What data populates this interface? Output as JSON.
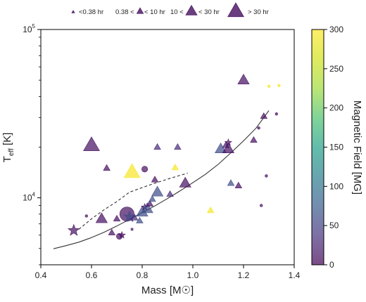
{
  "chart_data": {
    "type": "scatter",
    "title": "",
    "xlabel": "Mass [M☉]",
    "ylabel_main": "T",
    "ylabel_sub": "eff",
    "ylabel_unit": " [K]",
    "xlim": [
      0.4,
      1.4
    ],
    "ylim": [
      4000,
      100000
    ],
    "y_scale": "log",
    "grid": false,
    "x_ticks": [
      {
        "value": 0.4,
        "label": "0.4"
      },
      {
        "value": 0.6,
        "label": "0.6"
      },
      {
        "value": 0.8,
        "label": "0.8"
      },
      {
        "value": 1.0,
        "label": "1.0"
      },
      {
        "value": 1.2,
        "label": "1.2"
      },
      {
        "value": 1.4,
        "label": "1.4"
      }
    ],
    "y_major_ticks": [
      {
        "value": 10000,
        "base": "10",
        "exp": "4"
      },
      {
        "value": 100000,
        "base": "10",
        "exp": "5"
      }
    ],
    "y_minor_ticks": [
      4000,
      5000,
      6000,
      7000,
      8000,
      9000,
      20000,
      30000,
      40000,
      50000,
      60000,
      70000,
      80000,
      90000
    ],
    "colorbar": {
      "label": "Magnetic Field [MG]",
      "range": [
        0,
        300
      ],
      "colormap": "viridis",
      "alpha": 0.7,
      "ticks": [
        {
          "value": 0,
          "label": "0"
        },
        {
          "value": 50,
          "label": "50"
        },
        {
          "value": 100,
          "label": "100"
        },
        {
          "value": 150,
          "label": "150"
        },
        {
          "value": 200,
          "label": "200"
        },
        {
          "value": 250,
          "label": "250"
        },
        {
          "value": 300,
          "label": "300"
        }
      ]
    },
    "legend": {
      "placement": "top",
      "entries": [
        {
          "label": "<0.38 hr",
          "size_class": "tiny"
        },
        {
          "label": "0.38 < ",
          "label_after": "< 10 hr",
          "size_class": "small"
        },
        {
          "label": "10 < ",
          "label_after": "< 30 hr",
          "size_class": "medium"
        },
        {
          "label": "> 30 hr",
          "size_class": "large"
        }
      ]
    },
    "lines": [
      {
        "style": "solid",
        "color": "#333333",
        "points": [
          [
            0.45,
            4980
          ],
          [
            0.5,
            5200
          ],
          [
            0.55,
            5450
          ],
          [
            0.6,
            5800
          ],
          [
            0.65,
            6250
          ],
          [
            0.7,
            6800
          ],
          [
            0.75,
            7450
          ],
          [
            0.8,
            8150
          ],
          [
            0.85,
            8950
          ],
          [
            0.9,
            9900
          ],
          [
            0.95,
            11000
          ],
          [
            1.0,
            12300
          ],
          [
            1.05,
            13800
          ],
          [
            1.1,
            15800
          ],
          [
            1.15,
            18500
          ],
          [
            1.2,
            21800
          ],
          [
            1.25,
            26000
          ],
          [
            1.3,
            33000
          ]
        ]
      },
      {
        "style": "dashed",
        "color": "#333333",
        "points": [
          [
            0.55,
            6500
          ],
          [
            0.6,
            7500
          ],
          [
            0.65,
            8500
          ],
          [
            0.7,
            9500
          ],
          [
            0.75,
            10800
          ],
          [
            0.8,
            11500
          ],
          [
            0.85,
            12200
          ],
          [
            0.9,
            12900
          ],
          [
            0.95,
            13600
          ],
          [
            0.98,
            14000
          ]
        ]
      }
    ],
    "points": [
      {
        "x": 0.53,
        "y": 6400,
        "shape": "star",
        "size": "medium",
        "field": 10
      },
      {
        "x": 0.58,
        "y": 7800,
        "shape": "circle",
        "size": "tiny",
        "field": 10
      },
      {
        "x": 0.6,
        "y": 20500,
        "shape": "triangle",
        "size": "large",
        "field": 10
      },
      {
        "x": 0.64,
        "y": 7500,
        "shape": "triangle",
        "size": "medium",
        "field": 10
      },
      {
        "x": 0.66,
        "y": 15000,
        "shape": "triangle",
        "size": "small",
        "field": 10
      },
      {
        "x": 0.68,
        "y": 6200,
        "shape": "triangle",
        "size": "small",
        "field": 10
      },
      {
        "x": 0.7,
        "y": 7500,
        "shape": "triangle",
        "size": "small",
        "field": 10
      },
      {
        "x": 0.71,
        "y": 5900,
        "shape": "circle",
        "size": "small",
        "field": 10
      },
      {
        "x": 0.72,
        "y": 6000,
        "shape": "star",
        "size": "small",
        "field": 10
      },
      {
        "x": 0.74,
        "y": 8000,
        "shape": "circle",
        "size": "large",
        "field": 10
      },
      {
        "x": 0.75,
        "y": 7700,
        "shape": "star",
        "size": "medium",
        "field": 60
      },
      {
        "x": 0.76,
        "y": 6500,
        "shape": "star",
        "size": "tiny",
        "field": 10
      },
      {
        "x": 0.76,
        "y": 14200,
        "shape": "triangle",
        "size": "large",
        "field": 295
      },
      {
        "x": 0.77,
        "y": 7600,
        "shape": "triangle",
        "size": "small",
        "field": 30
      },
      {
        "x": 0.79,
        "y": 7300,
        "shape": "triangle",
        "size": "small",
        "field": 60
      },
      {
        "x": 0.8,
        "y": 8200,
        "shape": "triangle",
        "size": "medium",
        "field": 60
      },
      {
        "x": 0.81,
        "y": 8800,
        "shape": "star",
        "size": "small",
        "field": 10
      },
      {
        "x": 0.81,
        "y": 14800,
        "shape": "circle",
        "size": "small",
        "field": 10
      },
      {
        "x": 0.82,
        "y": 8600,
        "shape": "triangle",
        "size": "medium",
        "field": 60
      },
      {
        "x": 0.83,
        "y": 9200,
        "shape": "triangle",
        "size": "small",
        "field": 10
      },
      {
        "x": 0.84,
        "y": 9800,
        "shape": "triangle",
        "size": "small",
        "field": 60
      },
      {
        "x": 0.85,
        "y": 12800,
        "shape": "triangle",
        "size": "small",
        "field": 10
      },
      {
        "x": 0.86,
        "y": 10800,
        "shape": "triangle",
        "size": "medium",
        "field": 60
      },
      {
        "x": 0.86,
        "y": 20000,
        "shape": "triangle",
        "size": "small",
        "field": 30
      },
      {
        "x": 0.91,
        "y": 10500,
        "shape": "triangle",
        "size": "small",
        "field": 30
      },
      {
        "x": 0.93,
        "y": 15100,
        "shape": "triangle",
        "size": "small",
        "field": 295
      },
      {
        "x": 0.94,
        "y": 20000,
        "shape": "triangle",
        "size": "small",
        "field": 30
      },
      {
        "x": 0.97,
        "y": 12200,
        "shape": "triangle",
        "size": "medium",
        "field": 10
      },
      {
        "x": 1.07,
        "y": 8400,
        "shape": "triangle",
        "size": "small",
        "field": 295
      },
      {
        "x": 1.11,
        "y": 19500,
        "shape": "triangle",
        "size": "medium",
        "field": 60
      },
      {
        "x": 1.13,
        "y": 20500,
        "shape": "triangle",
        "size": "small",
        "field": 20
      },
      {
        "x": 1.14,
        "y": 19500,
        "shape": "triangle",
        "size": "medium",
        "field": 10
      },
      {
        "x": 1.14,
        "y": 21300,
        "shape": "star",
        "size": "small",
        "field": 10
      },
      {
        "x": 1.15,
        "y": 12200,
        "shape": "triangle",
        "size": "small",
        "field": 60
      },
      {
        "x": 1.18,
        "y": 11800,
        "shape": "triangle",
        "size": "small",
        "field": 10
      },
      {
        "x": 1.2,
        "y": 50000,
        "shape": "triangle",
        "size": "medium",
        "field": 10
      },
      {
        "x": 1.24,
        "y": 22000,
        "shape": "triangle",
        "size": "small",
        "field": 10
      },
      {
        "x": 1.26,
        "y": 26000,
        "shape": "circle",
        "size": "tiny",
        "field": 10
      },
      {
        "x": 1.27,
        "y": 9000,
        "shape": "circle",
        "size": "tiny",
        "field": 10
      },
      {
        "x": 1.28,
        "y": 30500,
        "shape": "triangle",
        "size": "small",
        "field": 10
      },
      {
        "x": 1.29,
        "y": 13500,
        "shape": "circle",
        "size": "tiny",
        "field": 10
      },
      {
        "x": 1.3,
        "y": 46000,
        "shape": "circle",
        "size": "tiny",
        "field": 295
      },
      {
        "x": 1.33,
        "y": 31500,
        "shape": "circle",
        "size": "tiny",
        "field": 10
      },
      {
        "x": 1.34,
        "y": 46500,
        "shape": "circle",
        "size": "tiny",
        "field": 295
      }
    ]
  }
}
